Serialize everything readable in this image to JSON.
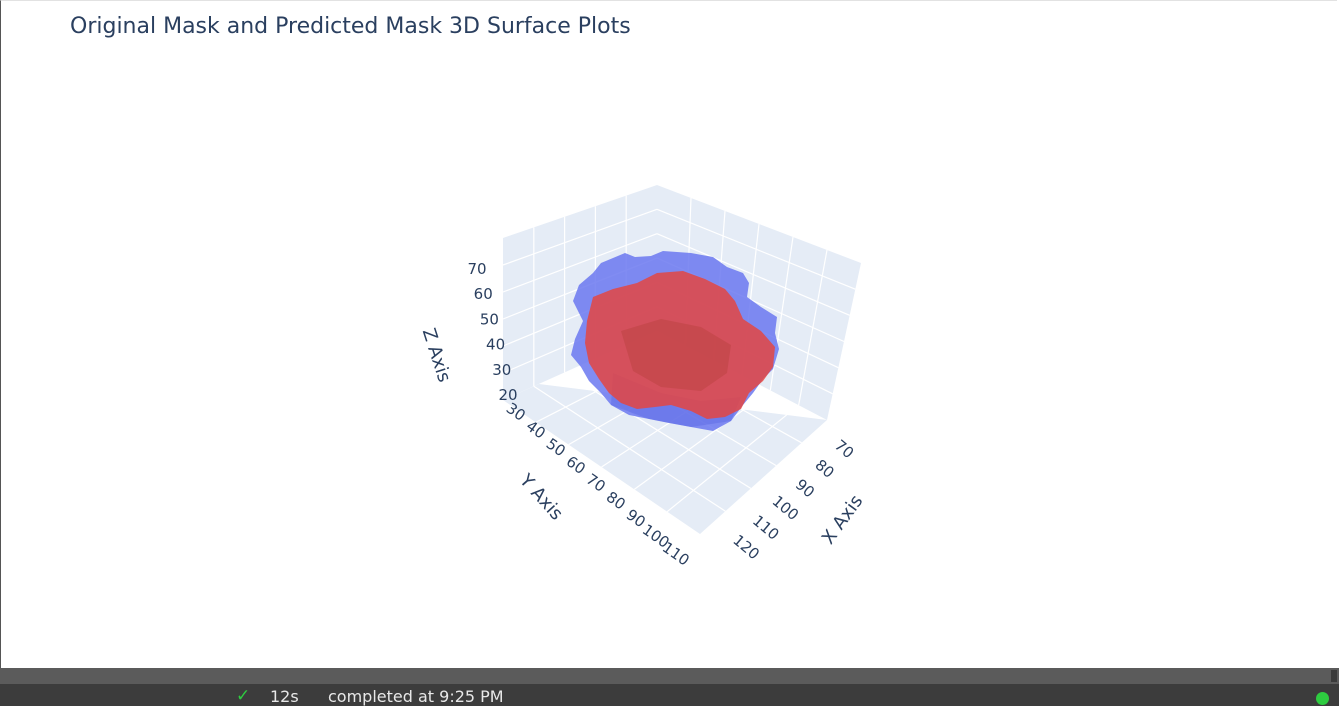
{
  "chart_data": {
    "type": "surface3d",
    "title": "Original Mask and Predicted Mask 3D Surface Plots",
    "x_axis": {
      "label": "X Axis",
      "ticks": [
        70,
        80,
        90,
        100,
        110,
        120
      ]
    },
    "y_axis": {
      "label": "Y Axis",
      "ticks": [
        30,
        40,
        50,
        60,
        70,
        80,
        90,
        100,
        110
      ]
    },
    "z_axis": {
      "label": "Z Axis",
      "ticks": [
        20,
        30,
        40,
        50,
        60,
        70
      ]
    },
    "grid": true,
    "series": [
      {
        "color": "#6b78f0",
        "opacity": 0.75
      },
      {
        "color": "#e8433a",
        "opacity": 0.8
      }
    ],
    "colors": {
      "scene_bg": "#e5ecf6",
      "grid": "#ffffff",
      "text": "#2a3f5f"
    }
  },
  "status": {
    "check_icon": "✓",
    "duration": "12s",
    "text": "completed at 9:25 PM"
  }
}
